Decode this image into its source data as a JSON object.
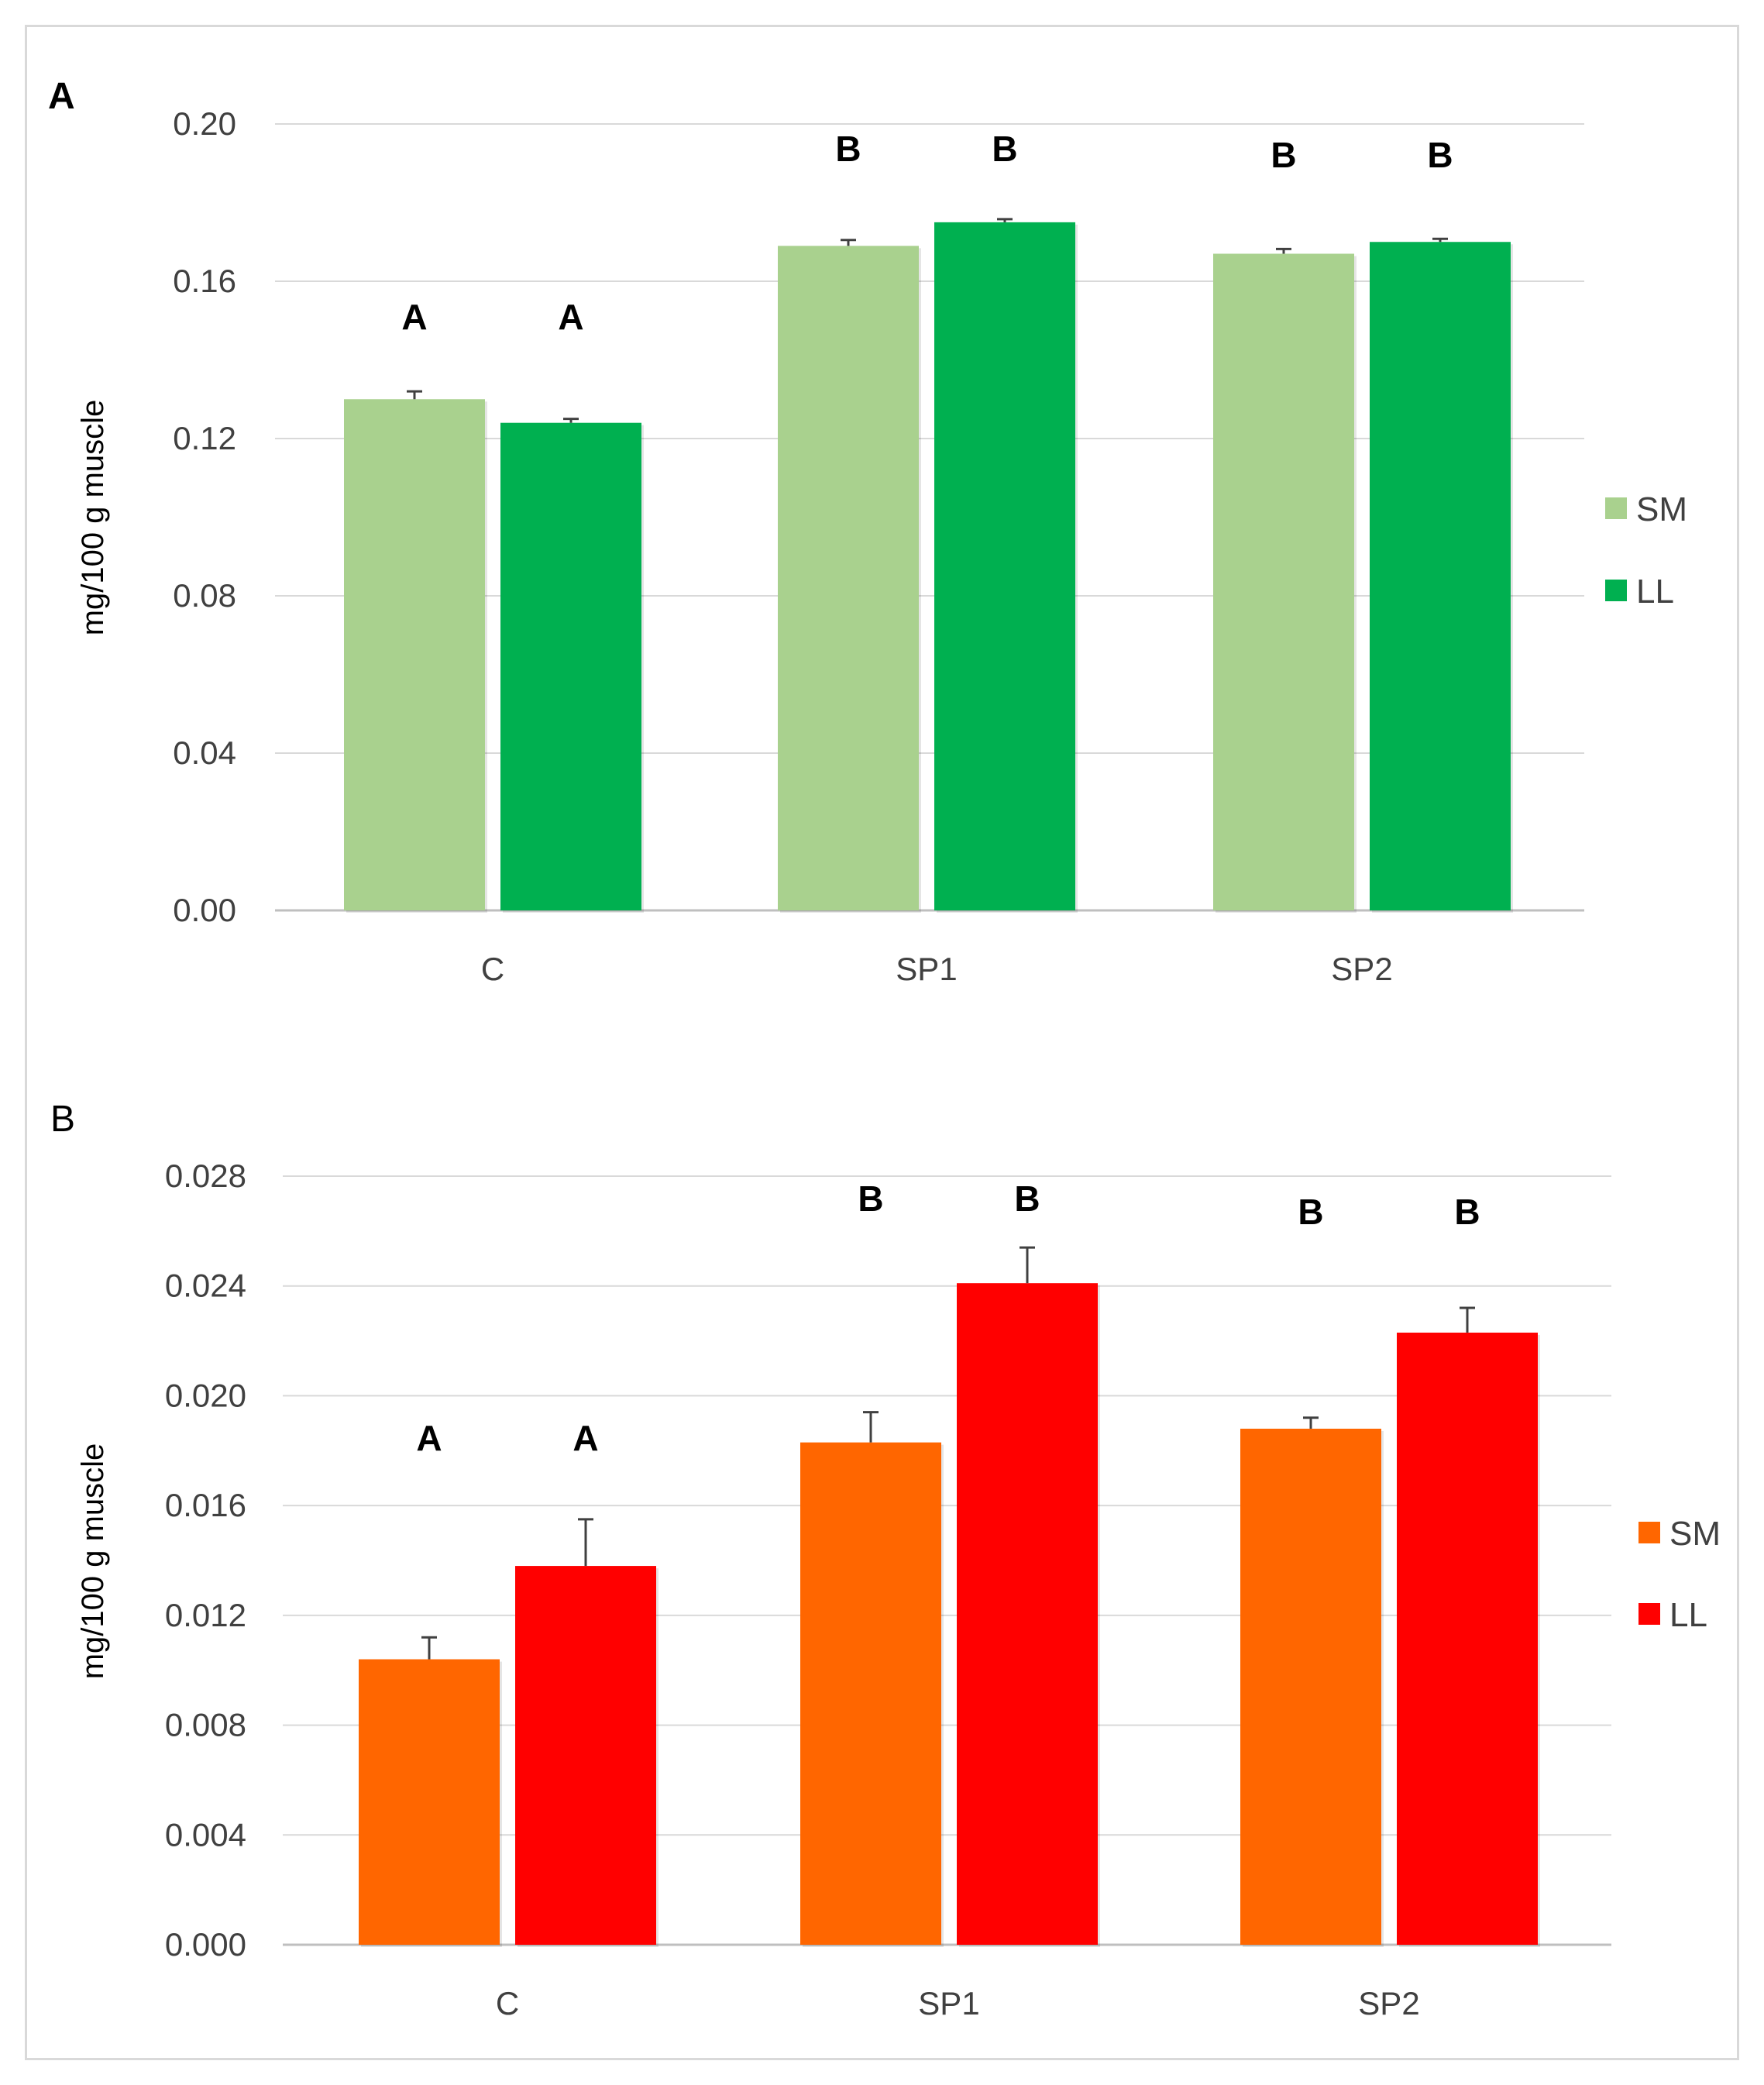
{
  "chart_data": [
    {
      "type": "bar",
      "panel_label": "A",
      "panel_label_bold": true,
      "categories": [
        "C",
        "SP1",
        "SP2"
      ],
      "ylabel": "mg/100 g muscle",
      "xlabel": "",
      "ylim": [
        0,
        0.2
      ],
      "yticks": [
        "0.00",
        "0.04",
        "0.08",
        "0.12",
        "0.16",
        "0.20"
      ],
      "ytick_values": [
        0,
        0.04,
        0.08,
        0.12,
        0.16,
        0.2
      ],
      "grid": true,
      "legend_position": "right",
      "series": [
        {
          "name": "SM",
          "color": "#a9d18e",
          "values": [
            0.13,
            0.169,
            0.167
          ],
          "errors": [
            0.002,
            0.0015,
            0.0012
          ]
        },
        {
          "name": "LL",
          "color": "#00b050",
          "values": [
            0.124,
            0.175,
            0.17
          ],
          "errors": [
            0.001,
            0.0008,
            0.0008
          ]
        }
      ],
      "significance": [
        [
          "A",
          "A"
        ],
        [
          "B",
          "B"
        ],
        [
          "B",
          "B"
        ]
      ]
    },
    {
      "type": "bar",
      "panel_label": "B",
      "panel_label_bold": false,
      "categories": [
        "C",
        "SP1",
        "SP2"
      ],
      "ylabel": "mg/100 g muscle",
      "xlabel": "",
      "ylim": [
        0,
        0.028
      ],
      "yticks": [
        "0.000",
        "0.004",
        "0.008",
        "0.012",
        "0.016",
        "0.020",
        "0.024",
        "0.028"
      ],
      "ytick_values": [
        0,
        0.004,
        0.008,
        0.012,
        0.016,
        0.02,
        0.024,
        0.028
      ],
      "grid": true,
      "legend_position": "right",
      "series": [
        {
          "name": "SM",
          "color": "#ff6600",
          "values": [
            0.0104,
            0.0183,
            0.0188
          ],
          "errors": [
            0.0008,
            0.0011,
            0.0004
          ]
        },
        {
          "name": "LL",
          "color": "#ff0000",
          "values": [
            0.0138,
            0.0241,
            0.0223
          ],
          "errors": [
            0.0017,
            0.0013,
            0.0009
          ]
        }
      ],
      "significance": [
        [
          "A",
          "A"
        ],
        [
          "B",
          "B"
        ],
        [
          "B",
          "B"
        ]
      ]
    }
  ]
}
